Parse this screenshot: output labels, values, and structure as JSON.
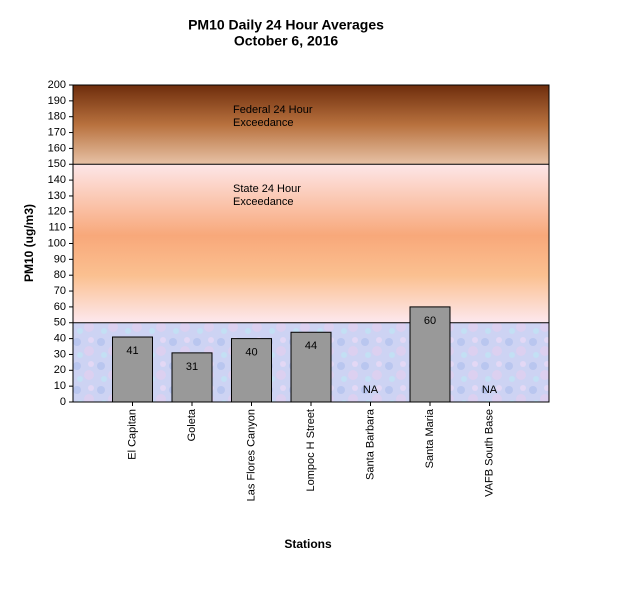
{
  "chart_data": {
    "type": "bar",
    "title": [
      "PM10 Daily 24 Hour Averages",
      "October 6, 2016"
    ],
    "y_label": "PM10 (ug/m3)",
    "x_label": "Stations",
    "categories": [
      "El Capitan",
      "Goleta",
      "Las Flores Canyon",
      "Lompoc H Street",
      "Santa Barbara",
      "Santa Maria",
      "VAFB South Base"
    ],
    "values": [
      41,
      31,
      40,
      44,
      null,
      60,
      null
    ],
    "value_labels": [
      "41",
      "31",
      "40",
      "44",
      "NA",
      "60",
      "NA"
    ],
    "color": "#999999",
    "ylim": [
      0,
      200
    ],
    "yticks": [
      0,
      10,
      20,
      30,
      40,
      50,
      60,
      70,
      80,
      90,
      100,
      110,
      120,
      130,
      140,
      150,
      160,
      170,
      180,
      190,
      200
    ],
    "zones": [
      {
        "from": 0,
        "to": 50
      },
      {
        "from": 50,
        "to": 150,
        "label": [
          "State 24 Hour",
          "Exceedance"
        ]
      },
      {
        "from": 150,
        "to": 200,
        "label": [
          "Federal 24 Hour",
          "Exceedance"
        ]
      }
    ]
  }
}
